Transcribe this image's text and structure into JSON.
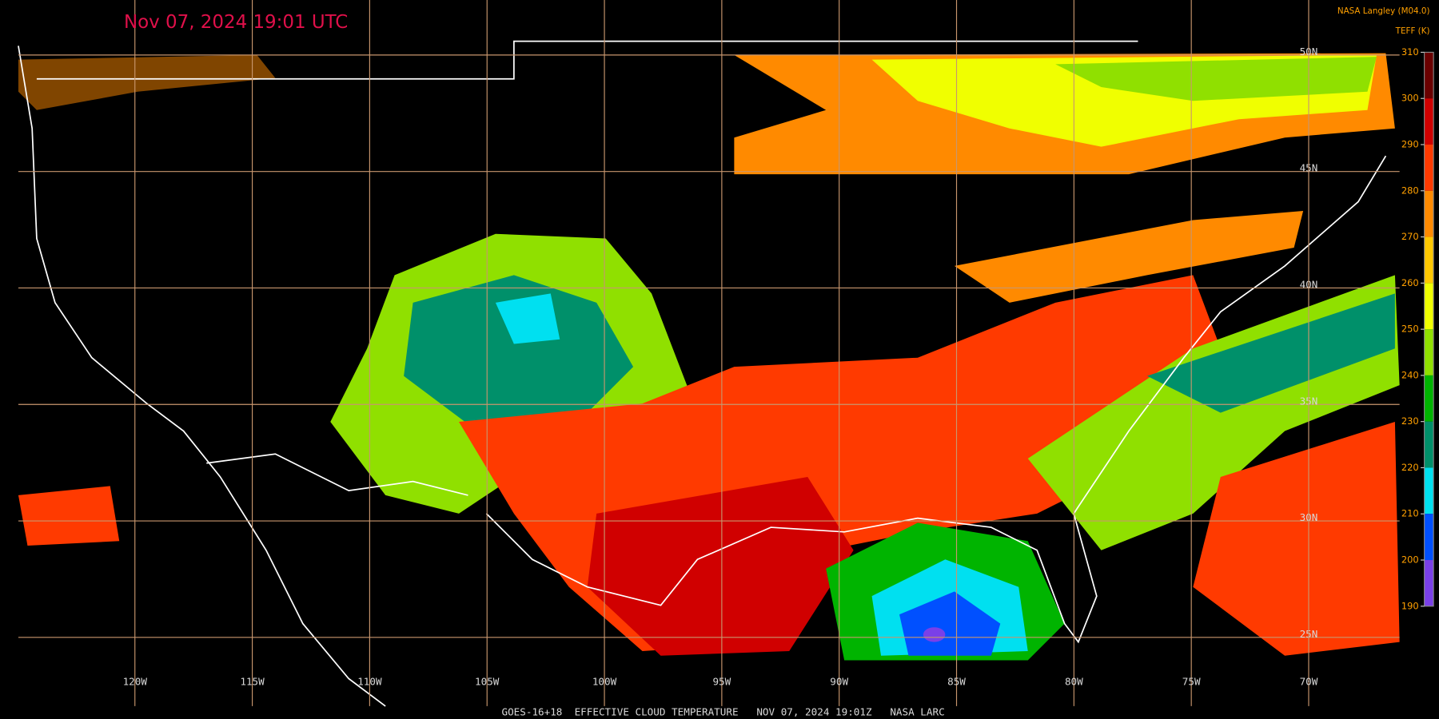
{
  "title": "Nov 07, 2024 19:01 UTC",
  "credit": "NASA Langley (M04.0)",
  "legend": {
    "title": "TEFF (K)",
    "ticks": [
      310,
      300,
      290,
      280,
      270,
      260,
      250,
      240,
      230,
      220,
      210,
      200,
      190
    ],
    "colors": [
      "#6a0000",
      "#d00000",
      "#ff3a00",
      "#ff8a00",
      "#ffc800",
      "#f0ff00",
      "#90e000",
      "#00b400",
      "#00906a",
      "#00e0f0",
      "#0050ff",
      "#7a40e8"
    ]
  },
  "grid": {
    "lat": [
      {
        "value": 50,
        "label": "50N"
      },
      {
        "value": 45,
        "label": "45N"
      },
      {
        "value": 40,
        "label": "40N"
      },
      {
        "value": 35,
        "label": "35N"
      },
      {
        "value": 30,
        "label": "30N"
      },
      {
        "value": 25,
        "label": "25N"
      }
    ],
    "lon": [
      {
        "value": 120,
        "label": "120W"
      },
      {
        "value": 115,
        "label": "115W"
      },
      {
        "value": 110,
        "label": "110W"
      },
      {
        "value": 105,
        "label": "105W"
      },
      {
        "value": 100,
        "label": "100W"
      },
      {
        "value": 95,
        "label": "95W"
      },
      {
        "value": 90,
        "label": "90W"
      },
      {
        "value": 85,
        "label": "85W"
      },
      {
        "value": 80,
        "label": "80W"
      },
      {
        "value": 75,
        "label": "75W"
      },
      {
        "value": 70,
        "label": "70W"
      }
    ]
  },
  "footer": "GOES-16+18  EFFECTIVE CLOUD TEMPERATURE   NOV 07, 2024 19:01Z   NASA LARC"
}
